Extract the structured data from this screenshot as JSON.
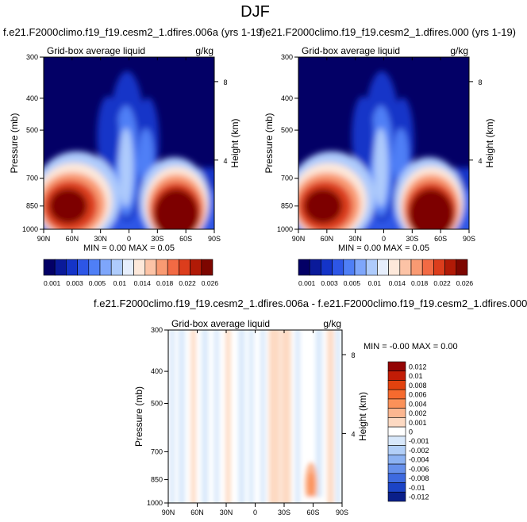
{
  "page_title": "DJF",
  "chart_data": [
    {
      "type": "heatmap",
      "panel": "top-left",
      "case_title": "f.e21.F2000climo.f19_f19.cesm2_1.dfires.006a (yrs 1-19)",
      "field_label": "Grid-box average liquid",
      "units": "g/kg",
      "ylabel": "Pressure (mb)",
      "ylabel_right": "Height (km)",
      "x_ticks": [
        "90N",
        "60N",
        "30N",
        "0",
        "30S",
        "60S",
        "90S"
      ],
      "y_ticks": [
        "300",
        "400",
        "500",
        "700",
        "850",
        "1000"
      ],
      "y_right_ticks": [
        "8",
        "4"
      ],
      "xlim": [
        "90N",
        "90S"
      ],
      "ylim": [
        1000,
        300
      ],
      "y_scale": "log",
      "min_max_text": "MIN =  0.00   MAX =  0.05",
      "colorbar_labels": [
        "0.001",
        "0.003",
        "0.005",
        "0.01",
        "0.014",
        "0.018",
        "0.022",
        "0.026"
      ],
      "levels": [
        0.001,
        0.002,
        0.003,
        0.004,
        0.005,
        0.0075,
        0.01,
        0.012,
        0.014,
        0.016,
        0.018,
        0.02,
        0.022,
        0.024,
        0.026
      ],
      "features": [
        {
          "feature": "NH midlatitude low-level liquid maximum",
          "lat_range": [
            "75N",
            "30N"
          ],
          "p_range": [
            700,
            1000
          ],
          "peak": 0.05
        },
        {
          "feature": "SH midlatitude low-level liquid maximum",
          "lat_range": [
            "25S",
            "60S"
          ],
          "p_range": [
            700,
            1000
          ],
          "peak": 0.05
        },
        {
          "feature": "tropical deep convective plume",
          "lat_range": [
            "10N",
            "10S"
          ],
          "p_range": [
            350,
            1000
          ],
          "peak": 0.01
        }
      ]
    },
    {
      "type": "heatmap",
      "panel": "top-right",
      "case_title": "f.e21.F2000climo.f19_f19.cesm2_1.dfires.000 (yrs 1-19)",
      "field_label": "Grid-box average liquid",
      "units": "g/kg",
      "ylabel": "Pressure (mb)",
      "ylabel_right": "Height (km)",
      "x_ticks": [
        "90N",
        "60N",
        "30N",
        "0",
        "30S",
        "60S",
        "90S"
      ],
      "y_ticks": [
        "300",
        "400",
        "500",
        "700",
        "850",
        "1000"
      ],
      "y_right_ticks": [
        "8",
        "4"
      ],
      "xlim": [
        "90N",
        "90S"
      ],
      "ylim": [
        1000,
        300
      ],
      "y_scale": "log",
      "min_max_text": "MIN =  0.00   MAX =  0.05",
      "colorbar_labels": [
        "0.001",
        "0.003",
        "0.005",
        "0.01",
        "0.014",
        "0.018",
        "0.022",
        "0.026"
      ],
      "levels": [
        0.001,
        0.002,
        0.003,
        0.004,
        0.005,
        0.0075,
        0.01,
        0.012,
        0.014,
        0.016,
        0.018,
        0.02,
        0.022,
        0.024,
        0.026
      ],
      "features": [
        {
          "feature": "NH midlatitude low-level liquid maximum",
          "lat_range": [
            "75N",
            "30N"
          ],
          "p_range": [
            700,
            1000
          ],
          "peak": 0.05
        },
        {
          "feature": "SH midlatitude low-level liquid maximum",
          "lat_range": [
            "25S",
            "60S"
          ],
          "p_range": [
            700,
            1000
          ],
          "peak": 0.05
        },
        {
          "feature": "tropical deep convective plume",
          "lat_range": [
            "10N",
            "10S"
          ],
          "p_range": [
            350,
            1000
          ],
          "peak": 0.01
        }
      ]
    },
    {
      "type": "heatmap",
      "panel": "bottom-difference",
      "case_title": "f.e21.F2000climo.f19_f19.cesm2_1.dfires.006a - f.e21.F2000climo.f19_f19.cesm2_1.dfires.000",
      "field_label": "Grid-box average liquid",
      "units": "g/kg",
      "ylabel": "Pressure (mb)",
      "ylabel_right": "Height (km)",
      "x_ticks": [
        "90N",
        "60N",
        "30N",
        "0",
        "30S",
        "60S",
        "90S"
      ],
      "y_ticks": [
        "300",
        "400",
        "500",
        "700",
        "850",
        "1000"
      ],
      "y_right_ticks": [
        "8",
        "4"
      ],
      "xlim": [
        "90N",
        "90S"
      ],
      "ylim": [
        1000,
        300
      ],
      "y_scale": "log",
      "min_max_text": "MIN = -0.00   MAX =  0.00",
      "colorbar_labels": [
        "0.012",
        "0.01",
        "0.008",
        "0.006",
        "0.004",
        "0.002",
        "0.001",
        "0",
        "-0.001",
        "-0.002",
        "-0.004",
        "-0.006",
        "-0.008",
        "-0.01",
        "-0.012"
      ],
      "features": [
        {
          "feature": "weak positive difference band",
          "lat_range": [
            "20S",
            "40S"
          ],
          "p_range": [
            300,
            1000
          ],
          "value": 0.001
        },
        {
          "feature": "positive difference spot",
          "lat_range": [
            "55S",
            "60S"
          ],
          "p_range": [
            820,
            960
          ],
          "value": 0.002
        }
      ]
    }
  ],
  "colors": {
    "seq_palette": [
      "#030066",
      "#0a1a9a",
      "#1434c8",
      "#2d56e6",
      "#4f7ff6",
      "#7ea6fb",
      "#aecbfc",
      "#e6eefc",
      "#fde8da",
      "#fcc3a6",
      "#f99a72",
      "#f26a44",
      "#dc3d1c",
      "#b11a06",
      "#7d0600"
    ],
    "diff_palette": [
      "#930404",
      "#c21c06",
      "#e2420e",
      "#f66a2e",
      "#fb9159",
      "#fcb690",
      "#fdd9c2",
      "#ffffff",
      "#d8e8fb",
      "#b2cff8",
      "#8cb2f3",
      "#6690ec",
      "#3e6ae0",
      "#1c44c6",
      "#0a1f8a"
    ]
  }
}
